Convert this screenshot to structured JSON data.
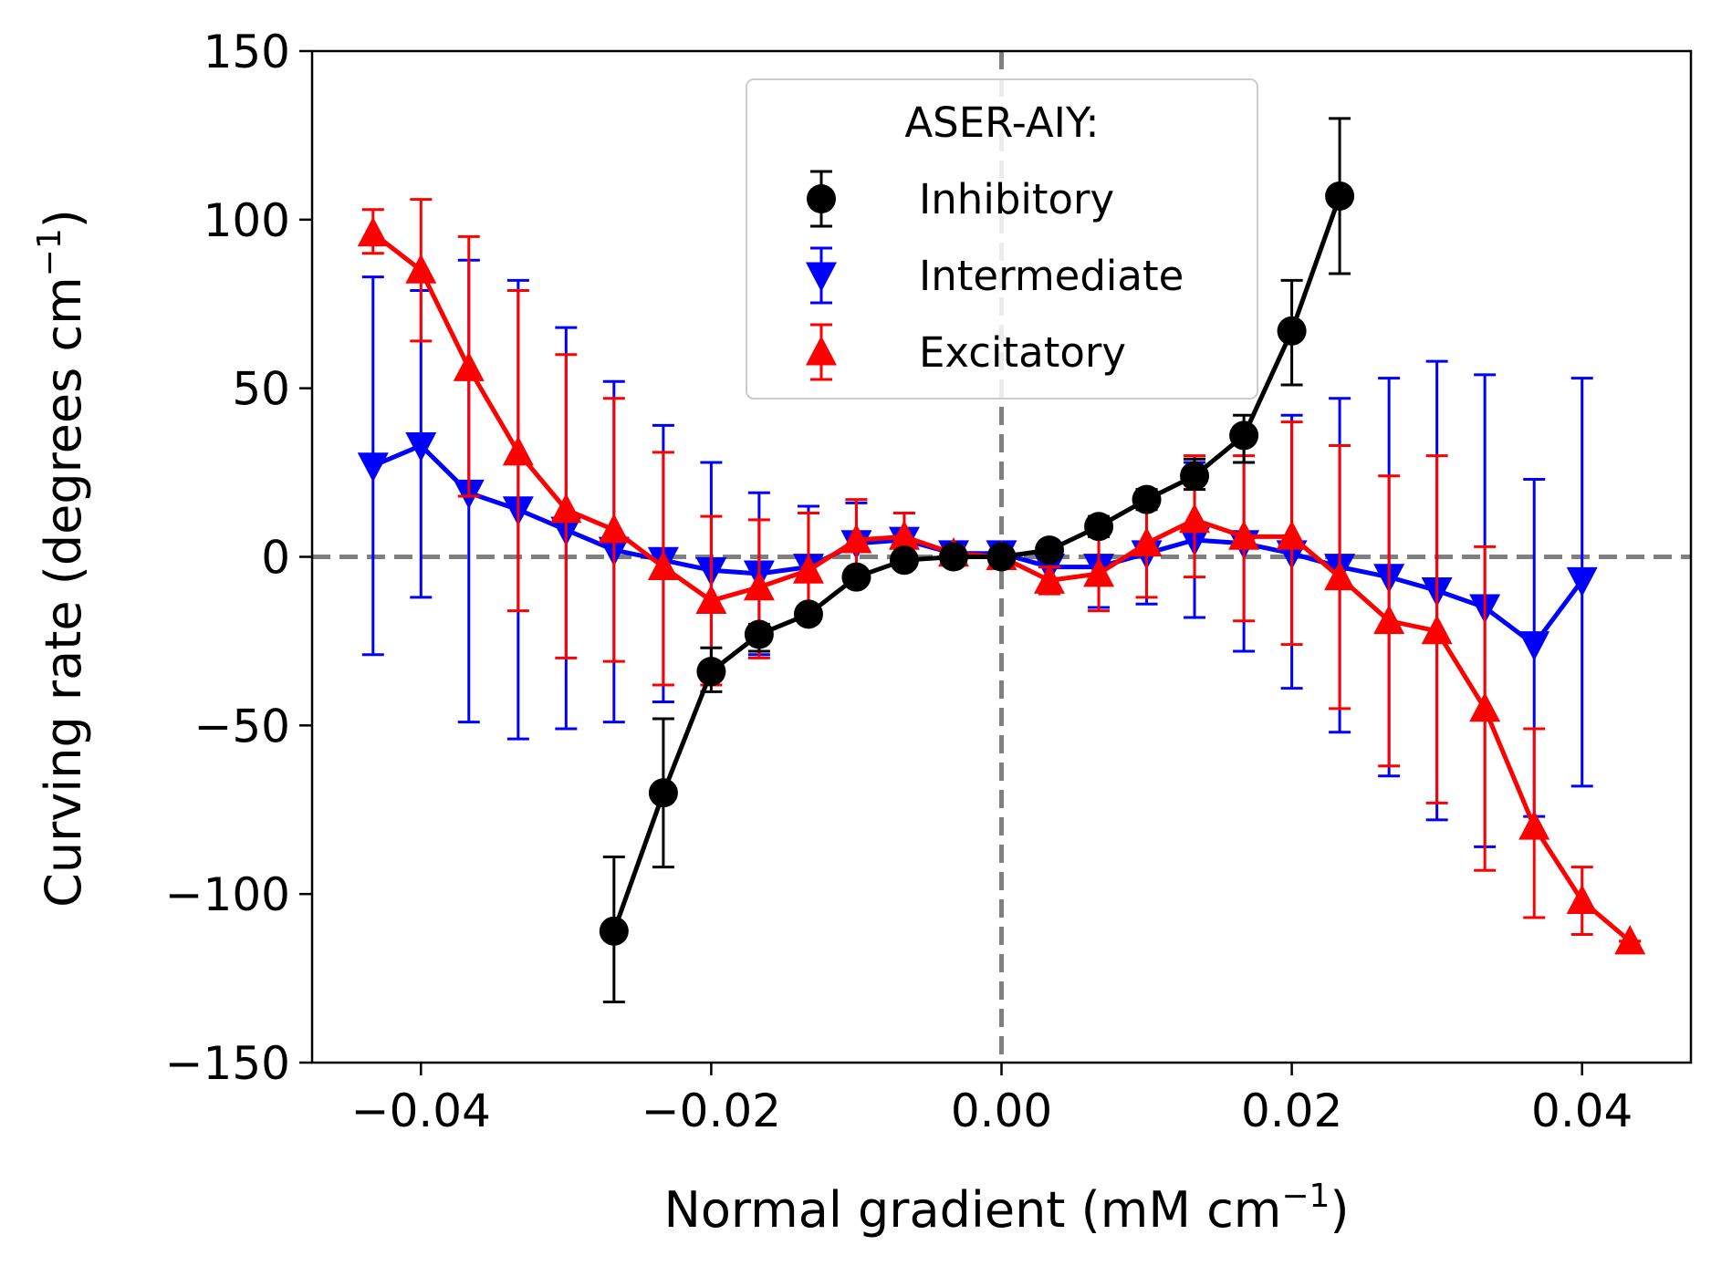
{
  "chart_data": {
    "type": "line",
    "title": "",
    "xlabel": "Normal gradient (mM cm",
    "xlabel_sup": "−1",
    "xlabel_end": ")",
    "ylabel": "Curving rate (degrees cm",
    "ylabel_sup": "−1",
    "ylabel_end": ")",
    "xlim": [
      -0.0475,
      0.0475
    ],
    "ylim": [
      -150,
      150
    ],
    "xticks": [
      -0.04,
      -0.02,
      0.0,
      0.02,
      0.04
    ],
    "xtick_labels": [
      "−0.04",
      "−0.02",
      "0.00",
      "0.02",
      "0.04"
    ],
    "yticks": [
      -150,
      -100,
      -50,
      0,
      50,
      100,
      150
    ],
    "ytick_labels": [
      "−150",
      "−100",
      "−50",
      "0",
      "50",
      "100",
      "150"
    ],
    "grid": false,
    "reference_lines": [
      {
        "orientation": "horizontal",
        "value": 0,
        "color": "#808080",
        "style": "dashed"
      },
      {
        "orientation": "vertical",
        "value": 0,
        "color": "#808080",
        "style": "dashed"
      }
    ],
    "legend": {
      "title": "ASER-AIY:",
      "placement": "top-center"
    },
    "series": [
      {
        "name": "Inhibitory",
        "color": "#000000",
        "marker": "circle",
        "x": [
          -0.0267,
          -0.0233,
          -0.02,
          -0.0167,
          -0.0133,
          -0.01,
          -0.0067,
          -0.0033,
          0.0,
          0.0033,
          0.0067,
          0.01,
          0.0133,
          0.0167,
          0.02,
          0.0233
        ],
        "y": [
          -111,
          -70,
          -34,
          -23,
          -17,
          -6,
          -1,
          0,
          0,
          2,
          9,
          17,
          24,
          36,
          67,
          107
        ],
        "err_low": [
          -132,
          -92,
          -40,
          -28,
          -19,
          -8,
          -2,
          -1,
          -1,
          1,
          6,
          14,
          20,
          28,
          51,
          84
        ],
        "err_high": [
          -89,
          -48,
          -27,
          -20,
          -15,
          -4,
          0,
          1,
          1,
          3,
          12,
          20,
          29,
          42,
          82,
          130
        ]
      },
      {
        "name": "Intermediate",
        "color": "#0000ff",
        "marker": "triangle-down",
        "x": [
          -0.0433,
          -0.04,
          -0.0367,
          -0.0333,
          -0.03,
          -0.0267,
          -0.0233,
          -0.02,
          -0.0167,
          -0.0133,
          -0.01,
          -0.0067,
          -0.0033,
          0.0,
          0.0033,
          0.0067,
          0.01,
          0.0133,
          0.0167,
          0.02,
          0.0233,
          0.0267,
          0.03,
          0.0333,
          0.0367,
          0.04
        ],
        "y": [
          27,
          33,
          19,
          14,
          8,
          2,
          -1,
          -4,
          -5,
          -3,
          4,
          5,
          1,
          1,
          -3,
          -3,
          1,
          5,
          4,
          1,
          -3,
          -6,
          -10,
          -15,
          -26,
          -7
        ],
        "err_low": [
          -29,
          -12,
          -49,
          -54,
          -51,
          -49,
          -43,
          -36,
          -29,
          -16,
          -8,
          -3,
          -1,
          -1,
          -9,
          -15,
          -14,
          -18,
          -28,
          -39,
          -52,
          -65,
          -78,
          -86,
          -77,
          -68
        ],
        "err_high": [
          83,
          79,
          88,
          82,
          68,
          52,
          39,
          28,
          19,
          15,
          16,
          13,
          3,
          3,
          3,
          9,
          16,
          28,
          36,
          42,
          47,
          53,
          58,
          54,
          23,
          53
        ]
      },
      {
        "name": "Excitatory",
        "color": "#ff0000",
        "marker": "triangle-up",
        "x": [
          -0.0433,
          -0.04,
          -0.0367,
          -0.0333,
          -0.03,
          -0.0267,
          -0.0233,
          -0.02,
          -0.0167,
          -0.0133,
          -0.01,
          -0.0067,
          -0.0033,
          0.0,
          0.0033,
          0.0067,
          0.01,
          0.0133,
          0.0167,
          0.02,
          0.0233,
          0.0267,
          0.03,
          0.0333,
          0.0367,
          0.04,
          0.0433
        ],
        "y": [
          96,
          85,
          56,
          31,
          14,
          8,
          -3,
          -13,
          -9,
          -4,
          5,
          6,
          1,
          0,
          -7,
          -5,
          4,
          11,
          6,
          6,
          -6,
          -19,
          -22,
          -45,
          -80,
          -102,
          -114
        ],
        "err_low": [
          90,
          64,
          18,
          -16,
          -30,
          -31,
          -38,
          -38,
          -30,
          -19,
          -7,
          -1,
          -1,
          -1,
          -11,
          -16,
          -12,
          -6,
          -19,
          -26,
          -45,
          -62,
          -73,
          -93,
          -107,
          -112,
          -114
        ],
        "err_high": [
          103,
          106,
          95,
          79,
          60,
          47,
          31,
          12,
          11,
          13,
          17,
          13,
          3,
          1,
          -3,
          7,
          20,
          30,
          30,
          40,
          33,
          24,
          30,
          3,
          -51,
          -92,
          -114
        ]
      }
    ]
  }
}
